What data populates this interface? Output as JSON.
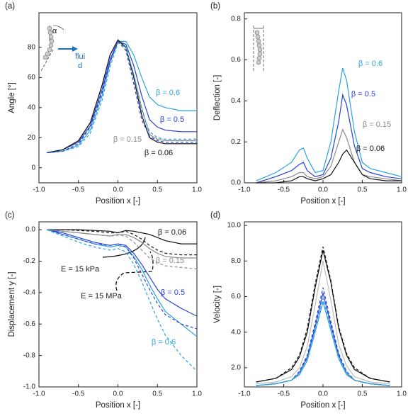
{
  "chart_data": [
    {
      "type": "line",
      "panel_label": "(a)",
      "xlabel": "Position x [-]",
      "ylabel": "Angle [°]",
      "inset_text": [
        "α",
        "flui",
        "d"
      ],
      "xlim": [
        -1,
        1
      ],
      "ylim": [
        -10,
        103
      ],
      "xticks": [
        {
          "value": -1,
          "label": "-1.0"
        },
        {
          "value": -0.5,
          "label": "-0.5"
        },
        {
          "value": 0,
          "label": "0.0"
        },
        {
          "value": 0.5,
          "label": "0.5"
        },
        {
          "value": 1,
          "label": "1.0"
        }
      ],
      "yticks": [
        0,
        20,
        40,
        60,
        80
      ],
      "x": [
        -0.9,
        -0.7,
        -0.5,
        -0.35,
        -0.2,
        -0.1,
        0,
        0.1,
        0.2,
        0.3,
        0.4,
        0.5,
        0.6,
        0.8,
        1.0
      ],
      "series": [
        {
          "name": "β = 0.6",
          "color": "#29a3e0",
          "dash": false,
          "values": [
            10,
            11,
            15,
            25,
            48,
            70,
            84,
            84,
            75,
            60,
            47,
            42,
            40,
            38,
            38
          ]
        },
        {
          "name": "β = 0.5",
          "color": "#2741d8",
          "dash": false,
          "values": [
            10,
            12,
            17,
            28,
            52,
            72,
            84,
            82,
            68,
            48,
            32,
            27,
            25,
            24,
            24
          ]
        },
        {
          "name": "β = 0.15",
          "color": "#8c8c8c",
          "dash": false,
          "values": [
            10,
            12,
            18,
            30,
            55,
            75,
            84,
            80,
            62,
            40,
            22,
            19,
            18,
            18,
            18
          ]
        },
        {
          "name": "β = 0.06",
          "color": "#111111",
          "dash": false,
          "values": [
            10,
            12,
            18,
            30,
            55,
            75,
            85,
            80,
            60,
            35,
            20,
            17,
            16,
            16,
            16
          ]
        },
        {
          "color": "#29a3e0",
          "dash": true,
          "values": [
            10,
            11,
            14,
            23,
            45,
            67,
            83,
            80,
            62,
            38,
            24,
            20,
            19,
            19,
            19
          ]
        },
        {
          "color": "#2741d8",
          "dash": true,
          "values": [
            10,
            11,
            16,
            27,
            50,
            70,
            84,
            78,
            56,
            32,
            21,
            18,
            17,
            17,
            17
          ]
        }
      ]
    },
    {
      "type": "line",
      "panel_label": "(b)",
      "xlabel": "Position x [-]",
      "ylabel": "Deflection [-]",
      "xlim": [
        -1,
        1
      ],
      "ylim": [
        0,
        0.83
      ],
      "xticks": [
        {
          "value": -1,
          "label": "-1.0"
        },
        {
          "value": -0.5,
          "label": "-0.5"
        },
        {
          "value": 0,
          "label": "0.0"
        },
        {
          "value": 0.5,
          "label": "0.5"
        },
        {
          "value": 1,
          "label": "1.0"
        }
      ],
      "yticks": [
        {
          "value": 0,
          "label": "0.0"
        },
        0.2,
        0.4,
        0.6,
        0.8
      ],
      "x": [
        -0.85,
        -0.6,
        -0.4,
        -0.3,
        -0.25,
        -0.2,
        -0.1,
        0,
        0.1,
        0.2,
        0.25,
        0.3,
        0.4,
        0.5,
        0.6,
        0.8,
        1.0
      ],
      "series": [
        {
          "name": "β = 0.6",
          "color": "#29a3e0",
          "dash": false,
          "values": [
            0.01,
            0.05,
            0.1,
            0.16,
            0.17,
            0.12,
            0.05,
            0.06,
            0.2,
            0.45,
            0.56,
            0.5,
            0.25,
            0.1,
            0.07,
            0.05,
            0.03
          ]
        },
        {
          "name": "β = 0.5",
          "color": "#2741d8",
          "dash": false,
          "values": [
            0,
            0.03,
            0.06,
            0.09,
            0.1,
            0.06,
            0.03,
            0.04,
            0.12,
            0.3,
            0.43,
            0.38,
            0.18,
            0.07,
            0.05,
            0.03,
            0.02
          ]
        },
        {
          "name": "β = 0.15",
          "color": "#8c8c8c",
          "dash": false,
          "values": [
            0,
            0.01,
            0.03,
            0.05,
            0.05,
            0.03,
            0.02,
            0.03,
            0.08,
            0.2,
            0.26,
            0.22,
            0.1,
            0.04,
            0.03,
            0.02,
            0.01
          ]
        },
        {
          "name": "β = 0.06",
          "color": "#111111",
          "dash": false,
          "values": [
            0,
            0,
            0.01,
            0.03,
            0.03,
            0.02,
            0.01,
            0.02,
            0.04,
            0.1,
            0.14,
            0.16,
            0.1,
            0.04,
            0.02,
            0.01,
            0.01
          ]
        }
      ]
    },
    {
      "type": "line",
      "panel_label": "(c)",
      "xlabel": "Position x [-]",
      "ylabel": "Displacement y [-]",
      "annotations": [
        "E = 15 kPa",
        "E = 15 MPa"
      ],
      "xlim": [
        -1,
        1
      ],
      "ylim": [
        -1,
        0.05
      ],
      "xticks": [
        {
          "value": -1,
          "label": "-1.0"
        },
        {
          "value": -0.5,
          "label": "-0.5"
        },
        {
          "value": 0,
          "label": "0.0"
        },
        {
          "value": 0.5,
          "label": "0.5"
        },
        {
          "value": 1,
          "label": "1.0"
        }
      ],
      "yticks": [
        {
          "value": 0,
          "label": "0.0"
        },
        -0.2,
        -0.4,
        -0.6,
        -0.8,
        {
          "value": -1,
          "label": "-1.0"
        }
      ],
      "x": [
        -0.9,
        -0.7,
        -0.5,
        -0.3,
        -0.1,
        0,
        0.1,
        0.2,
        0.3,
        0.4,
        0.5,
        0.6,
        0.8,
        1.0
      ],
      "series": [
        {
          "name": "β = 0.06",
          "color": "#111111",
          "dash": false,
          "values": [
            0,
            0,
            0,
            -0.005,
            -0.01,
            -0.02,
            -0.005,
            -0.01,
            -0.02,
            -0.03,
            -0.05,
            -0.07,
            -0.09,
            -0.09
          ]
        },
        {
          "name": "β = 0.15",
          "color": "#8c8c8c",
          "dash": false,
          "values": [
            0,
            -0.01,
            -0.02,
            -0.03,
            -0.04,
            -0.03,
            -0.03,
            -0.05,
            -0.08,
            -0.12,
            -0.15,
            -0.17,
            -0.18,
            -0.18
          ]
        },
        {
          "name": "β = 0.5",
          "color": "#2741d8",
          "dash": false,
          "values": [
            0,
            -0.02,
            -0.05,
            -0.08,
            -0.1,
            -0.09,
            -0.1,
            -0.15,
            -0.22,
            -0.3,
            -0.38,
            -0.44,
            -0.5,
            -0.55
          ]
        },
        {
          "name": "β = 0.6",
          "color": "#29a3e0",
          "dash": false,
          "values": [
            0,
            -0.03,
            -0.06,
            -0.09,
            -0.11,
            -0.1,
            -0.11,
            -0.17,
            -0.25,
            -0.35,
            -0.44,
            -0.52,
            -0.6,
            -0.68
          ]
        },
        {
          "color": "#111111",
          "dash": true,
          "values": [
            0,
            0,
            -0.005,
            -0.01,
            -0.02,
            -0.02,
            -0.01,
            -0.03,
            -0.06,
            -0.1,
            -0.13,
            -0.15,
            -0.16,
            -0.16
          ]
        },
        {
          "color": "#8c8c8c",
          "dash": true,
          "values": [
            0,
            -0.01,
            -0.02,
            -0.03,
            -0.04,
            -0.035,
            -0.04,
            -0.08,
            -0.13,
            -0.18,
            -0.21,
            -0.23,
            -0.24,
            -0.25
          ]
        },
        {
          "color": "#2741d8",
          "dash": true,
          "values": [
            0,
            -0.03,
            -0.06,
            -0.09,
            -0.1,
            -0.09,
            -0.11,
            -0.18,
            -0.28,
            -0.38,
            -0.47,
            -0.54,
            -0.6,
            -0.63
          ]
        },
        {
          "color": "#29a3e0",
          "dash": true,
          "values": [
            0,
            -0.04,
            -0.08,
            -0.11,
            -0.13,
            -0.12,
            -0.14,
            -0.22,
            -0.33,
            -0.45,
            -0.57,
            -0.67,
            -0.8,
            -0.9
          ]
        }
      ]
    },
    {
      "type": "line",
      "panel_label": "(d)",
      "xlabel": "Position x [-]",
      "ylabel": "Velocity [-]",
      "xlim": [
        -1,
        1
      ],
      "ylim": [
        0.92,
        10.2
      ],
      "xticks": [
        {
          "value": -1,
          "label": "-1.0"
        },
        {
          "value": -0.5,
          "label": "-0.5"
        },
        {
          "value": 0,
          "label": "0.0"
        },
        {
          "value": 0.5,
          "label": "0.5"
        },
        {
          "value": 1,
          "label": "1.0"
        }
      ],
      "yticks": [
        {
          "value": 2,
          "label": "2.0"
        },
        {
          "value": 4,
          "label": "4.0"
        },
        {
          "value": 6,
          "label": "6.0"
        },
        {
          "value": 8,
          "label": "8.0"
        },
        {
          "value": 10,
          "label": "10.0"
        }
      ],
      "x": [
        -0.85,
        -0.6,
        -0.4,
        -0.3,
        -0.2,
        -0.1,
        0,
        0.1,
        0.2,
        0.3,
        0.4,
        0.6,
        0.85
      ],
      "series": [
        {
          "color": "#111111",
          "dash": false,
          "values": [
            1.2,
            1.4,
            1.9,
            2.6,
            4.0,
            6.5,
            8.6,
            6.8,
            4.2,
            2.7,
            1.9,
            1.4,
            1.2
          ]
        },
        {
          "color": "#bdbdbd",
          "dash": false,
          "values": [
            1.1,
            1.2,
            1.5,
            2.0,
            3.2,
            5.5,
            8.0,
            5.8,
            3.3,
            2.1,
            1.5,
            1.2,
            1.1
          ]
        },
        {
          "color": "#2741d8",
          "dash": false,
          "values": [
            1.0,
            1.1,
            1.3,
            1.7,
            2.6,
            4.3,
            6.2,
            4.4,
            2.7,
            1.7,
            1.3,
            1.1,
            1.0
          ]
        },
        {
          "color": "#29a3e0",
          "dash": false,
          "values": [
            1.0,
            1.1,
            1.3,
            1.6,
            2.4,
            4.0,
            5.7,
            4.1,
            2.5,
            1.6,
            1.3,
            1.1,
            1.0
          ]
        },
        {
          "color": "#111111",
          "dash": true,
          "values": [
            1.2,
            1.4,
            2.0,
            2.7,
            4.2,
            6.7,
            8.8,
            6.9,
            4.3,
            2.8,
            2.0,
            1.4,
            1.2
          ]
        },
        {
          "color": "#2741d8",
          "dash": true,
          "values": [
            1.0,
            1.1,
            1.3,
            1.8,
            2.7,
            4.5,
            6.5,
            4.6,
            2.8,
            1.8,
            1.3,
            1.1,
            1.0
          ]
        },
        {
          "color": "#29a3e0",
          "dash": true,
          "values": [
            1.0,
            1.1,
            1.3,
            1.7,
            2.5,
            4.1,
            5.9,
            4.2,
            2.6,
            1.7,
            1.3,
            1.1,
            1.0
          ]
        }
      ]
    }
  ]
}
